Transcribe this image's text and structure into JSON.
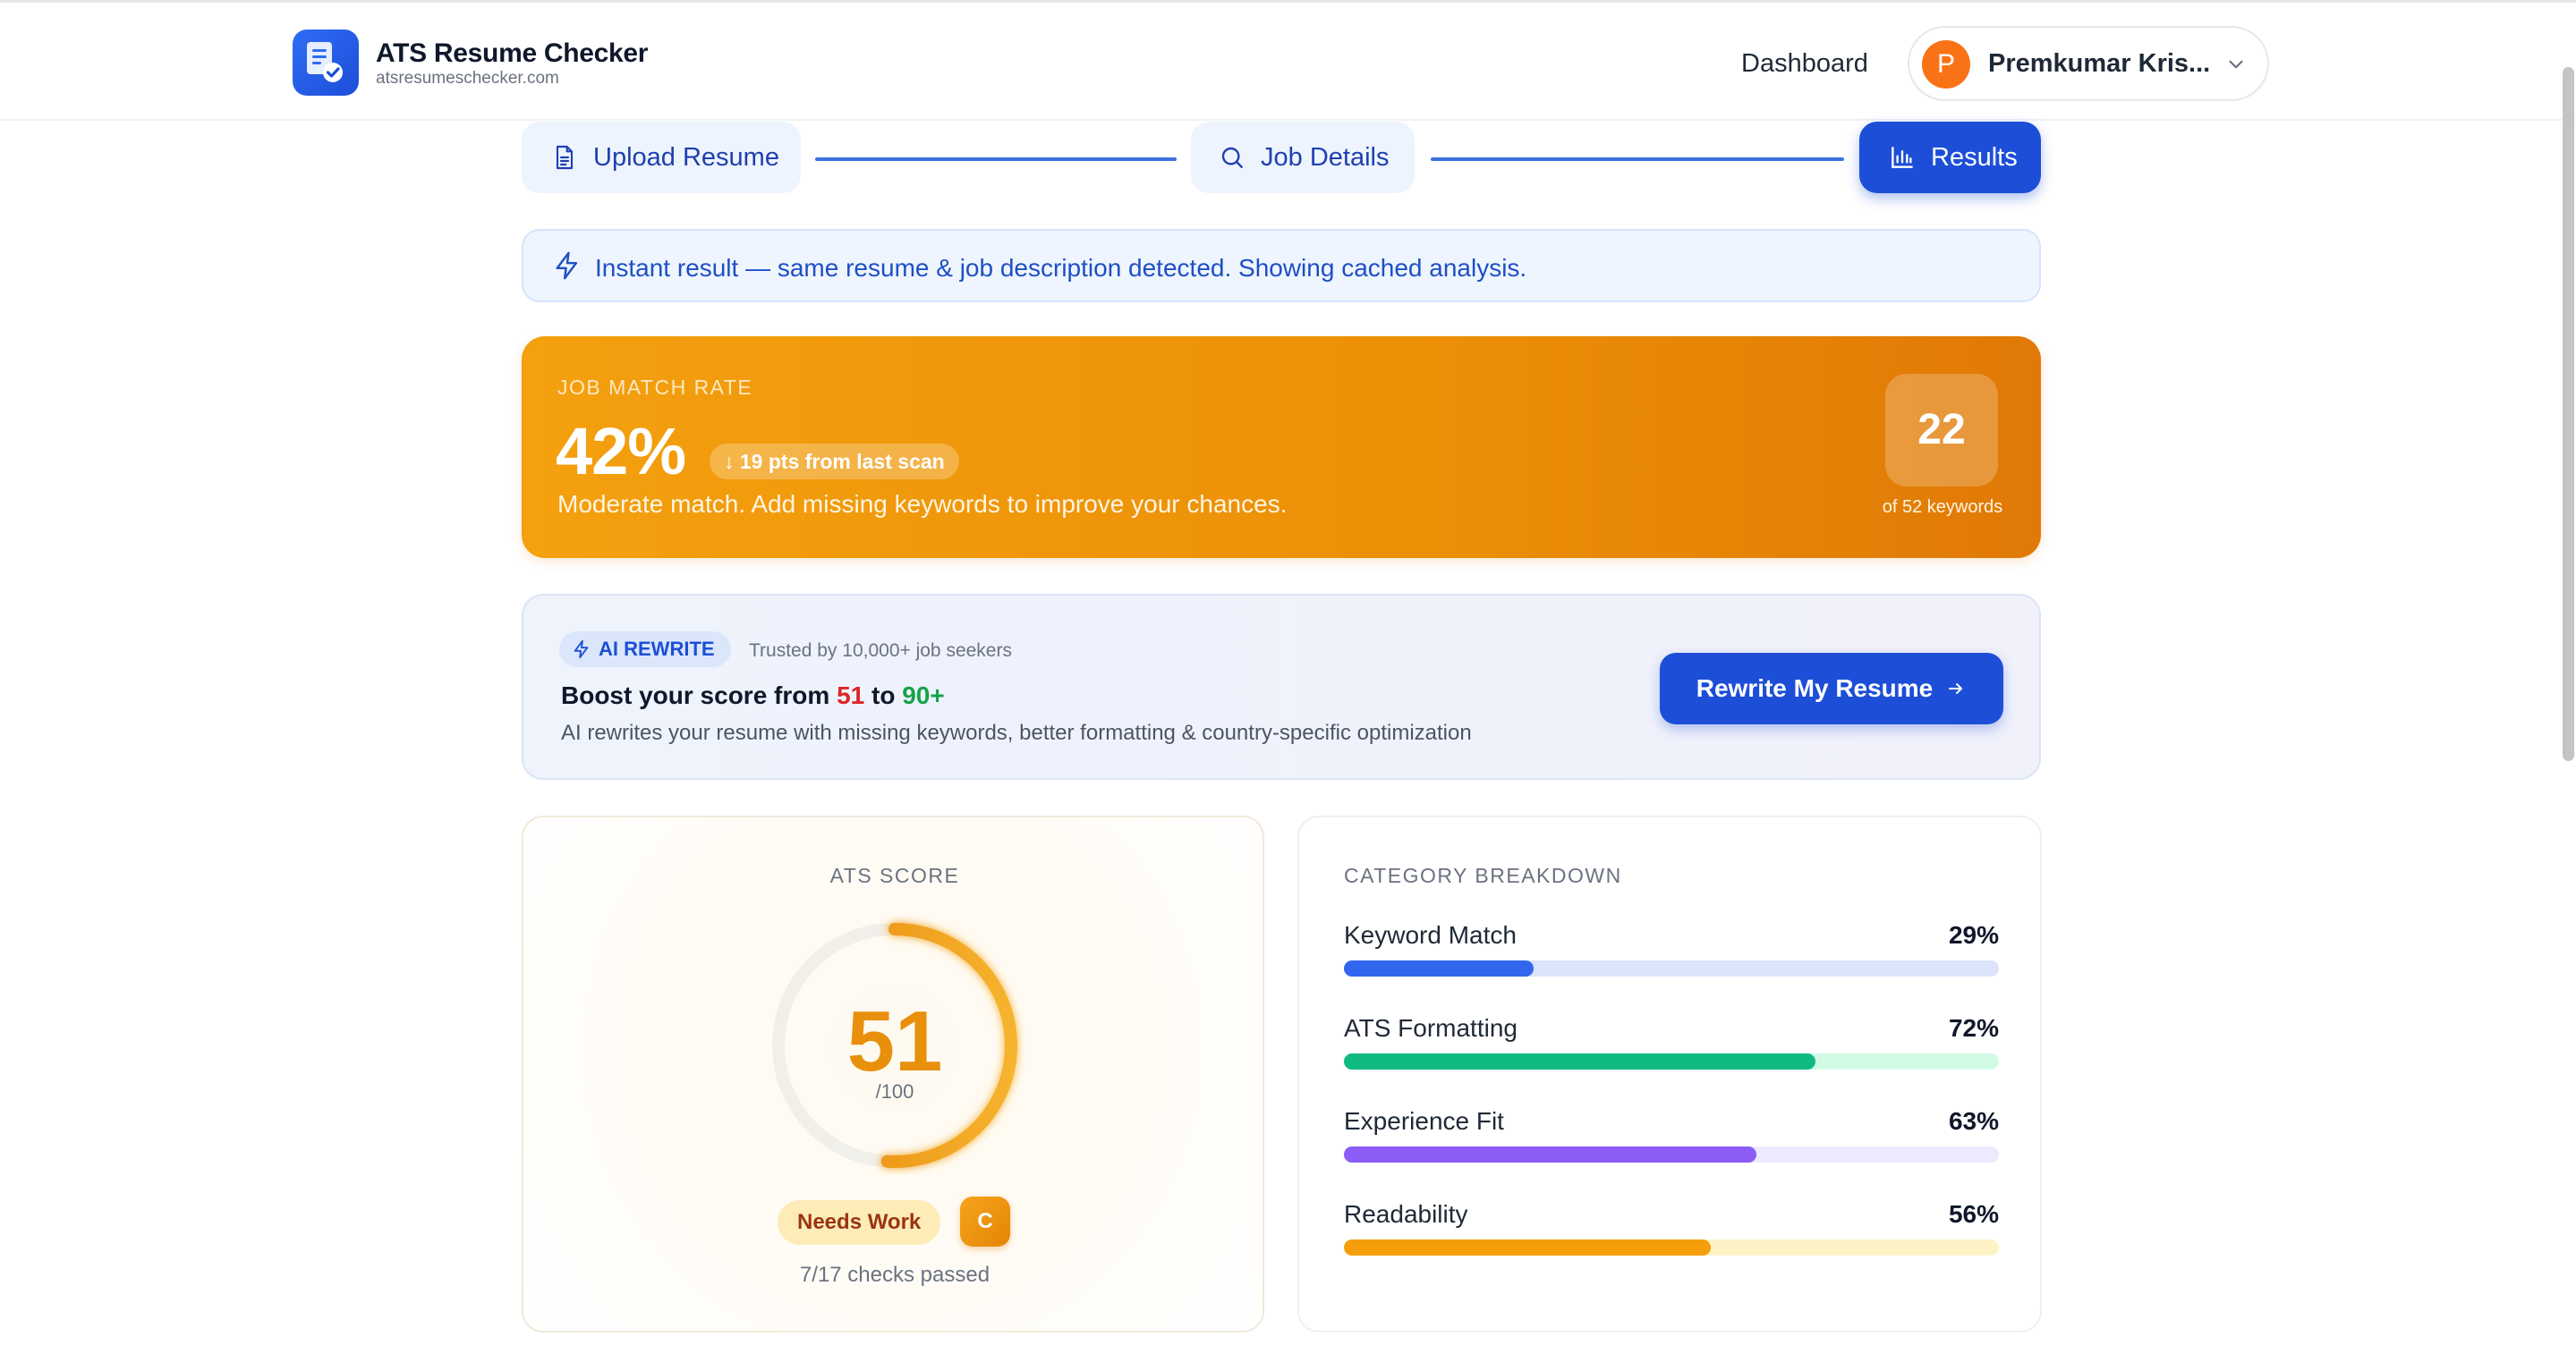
{
  "header": {
    "brand_name": "ATS Resume Checker",
    "brand_domain": "atsresumeschecker.com",
    "nav_dashboard": "Dashboard",
    "user_initial": "P",
    "user_name": "Premkumar Kris..."
  },
  "steps": [
    {
      "label": "Upload Resume",
      "icon": "document-icon",
      "state": "done"
    },
    {
      "label": "Job Details",
      "icon": "search-icon",
      "state": "done"
    },
    {
      "label": "Results",
      "icon": "bar-chart-icon",
      "state": "active"
    }
  ],
  "notice": {
    "text": "Instant result — same resume & job description detected. Showing cached analysis.",
    "icon": "lightning-icon"
  },
  "job_match": {
    "label": "JOB MATCH RATE",
    "value": "42%",
    "delta": "↓ 19 pts from last scan",
    "subtitle": "Moderate match. Add missing keywords to improve your chances.",
    "keywords_matched": "22",
    "keywords_total_label": "of 52 keywords"
  },
  "ai_rewrite": {
    "tag": "AI REWRITE",
    "trusted": "Trusted by 10,000+ job seekers",
    "boost_prefix": "Boost your score from ",
    "boost_from": "51",
    "boost_mid": " to ",
    "boost_to": "90+",
    "description": "AI rewrites your resume with missing keywords, better formatting & country-specific optimization",
    "button_label": "Rewrite My Resume"
  },
  "ats_score": {
    "title": "ATS SCORE",
    "score": "51",
    "denominator": "/100",
    "score_fraction": 0.51,
    "status": "Needs Work",
    "grade": "C",
    "checks": "7/17 checks passed"
  },
  "category_breakdown": {
    "title": "CATEGORY BREAKDOWN",
    "items": [
      {
        "label": "Keyword Match",
        "value": "29%",
        "fraction": 0.29,
        "color": "#3366ee",
        "track": "#dbe4fa"
      },
      {
        "label": "ATS Formatting",
        "value": "72%",
        "fraction": 0.72,
        "color": "#10b981",
        "track": "#d1fae5"
      },
      {
        "label": "Experience Fit",
        "value": "63%",
        "fraction": 0.63,
        "color": "#8b5cf6",
        "track": "#ede9fe"
      },
      {
        "label": "Readability",
        "value": "56%",
        "fraction": 0.56,
        "color": "#f59e0b",
        "track": "#fef3c7"
      }
    ]
  },
  "colors": {
    "primary": "#1d4ed8",
    "match_orange": "#ec8f07",
    "score_orange": "#e8900b"
  }
}
